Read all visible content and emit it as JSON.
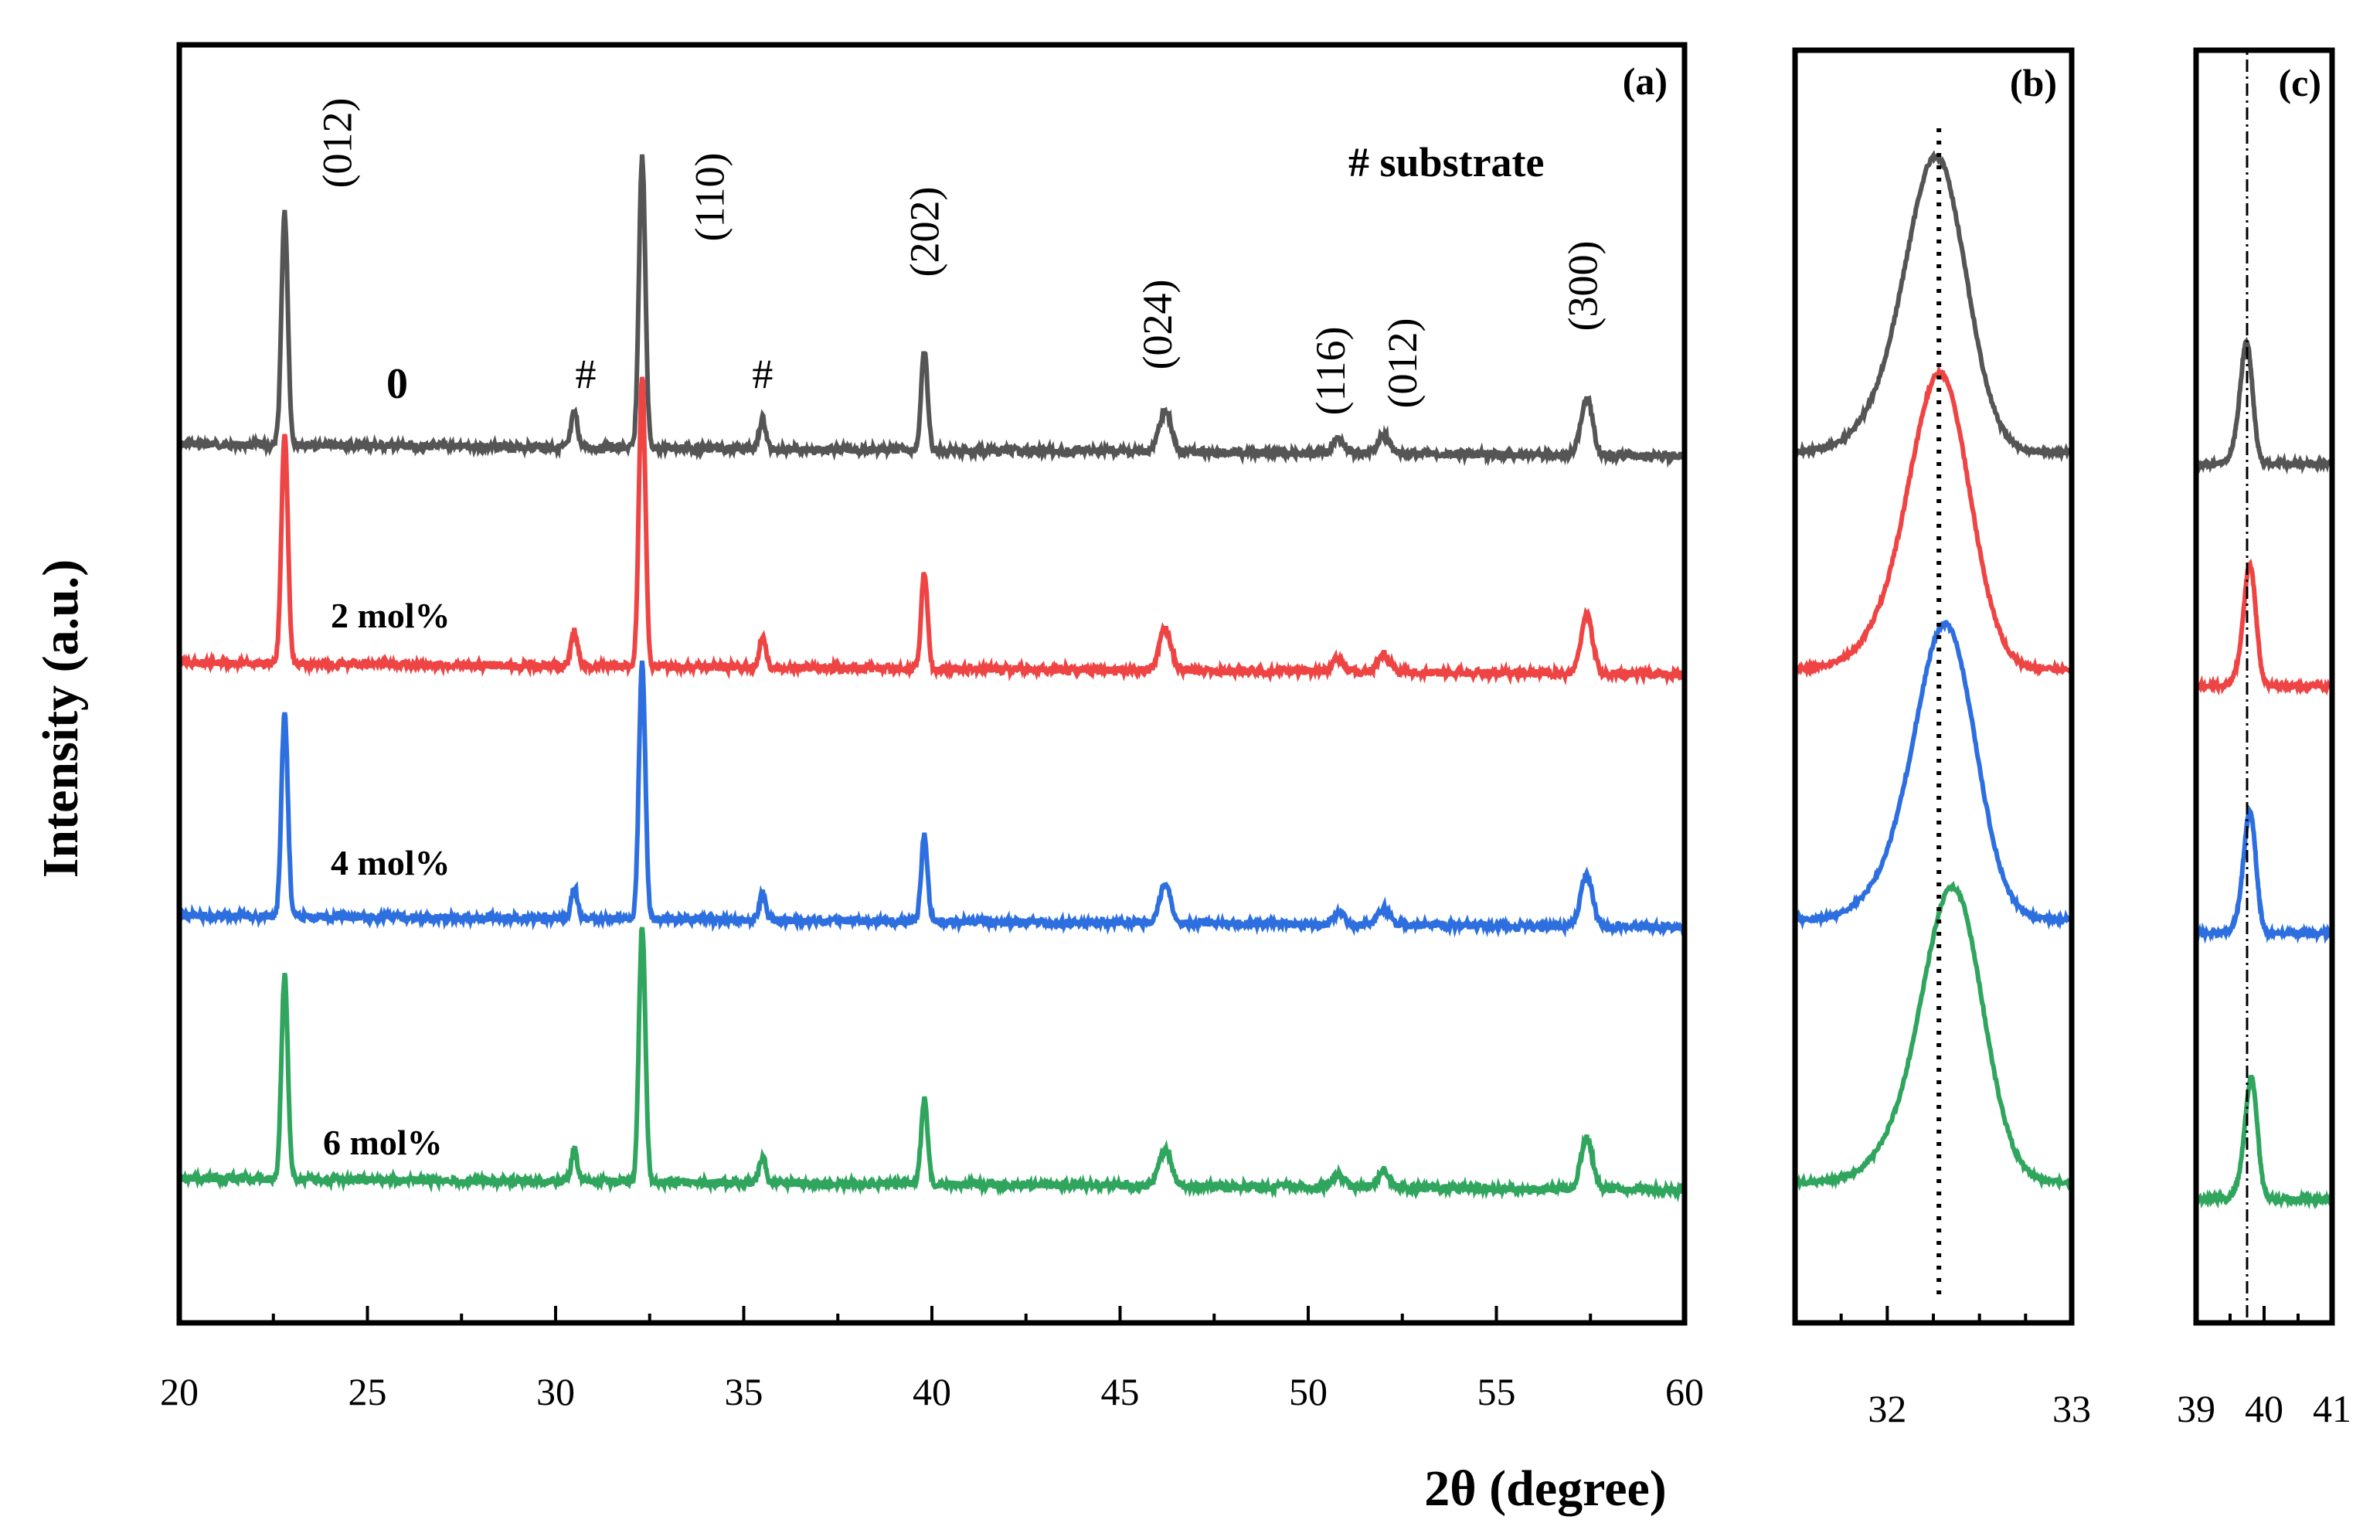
{
  "chart_data": [
    {
      "panel": "a",
      "type": "line",
      "panel_label": "(a)",
      "xlabel": "2θ (degree)",
      "ylabel": "Intensity (a.u.)",
      "xlim": [
        20,
        60
      ],
      "xticks": [
        20,
        25,
        30,
        35,
        40,
        45,
        50,
        55,
        60
      ],
      "legend_note": "# substrate",
      "series": [
        {
          "name": "0",
          "color": "#555555",
          "offset": 3.0,
          "peak_scale": 1.0
        },
        {
          "name": "2 mol%",
          "color": "#ee4444",
          "offset": 2.0,
          "peak_scale": 1.0
        },
        {
          "name": "4 mol%",
          "color": "#2e6fe0",
          "offset": 1.0,
          "peak_scale": 0.88
        },
        {
          "name": "6 mol%",
          "color": "#2fa55e",
          "offset": 0.0,
          "peak_scale": 0.88
        }
      ],
      "peaks": [
        {
          "pos": 22.8,
          "height": 1.0
        },
        {
          "pos": 30.5,
          "height": 0.15
        },
        {
          "pos": 32.3,
          "height": 1.25
        },
        {
          "pos": 35.5,
          "height": 0.13
        },
        {
          "pos": 39.8,
          "height": 0.42
        },
        {
          "pos": 46.2,
          "height": 0.18
        },
        {
          "pos": 50.8,
          "height": 0.06
        },
        {
          "pos": 52.0,
          "height": 0.08
        },
        {
          "pos": 57.4,
          "height": 0.25
        }
      ],
      "peak_labels": [
        {
          "text": "(012)",
          "x": 24.2
        },
        {
          "text": "(110)",
          "x": 34.1
        },
        {
          "text": "(202)",
          "x": 39.8
        },
        {
          "text": "(024)",
          "x": 46.0
        },
        {
          "text": "(116)",
          "x": 50.6
        },
        {
          "text": "(012)",
          "x": 52.5
        },
        {
          "text": "(300)",
          "x": 57.3
        }
      ],
      "substrate_marks": [
        {
          "text": "#",
          "x": 30.8
        },
        {
          "text": "#",
          "x": 35.5
        }
      ]
    },
    {
      "panel": "b",
      "type": "line",
      "panel_label": "(b)",
      "xlim": [
        31.5,
        33
      ],
      "xticks": [
        32,
        33
      ],
      "reference_line": 32.28,
      "peak_centers": [
        32.28,
        32.3,
        32.33,
        32.37
      ]
    },
    {
      "panel": "c",
      "type": "line",
      "panel_label": "(c)",
      "xlim": [
        39,
        41
      ],
      "xticks": [
        39,
        40,
        41
      ],
      "reference_line": 39.75,
      "peak_centers": [
        39.75,
        39.8,
        39.8,
        39.82
      ]
    }
  ]
}
